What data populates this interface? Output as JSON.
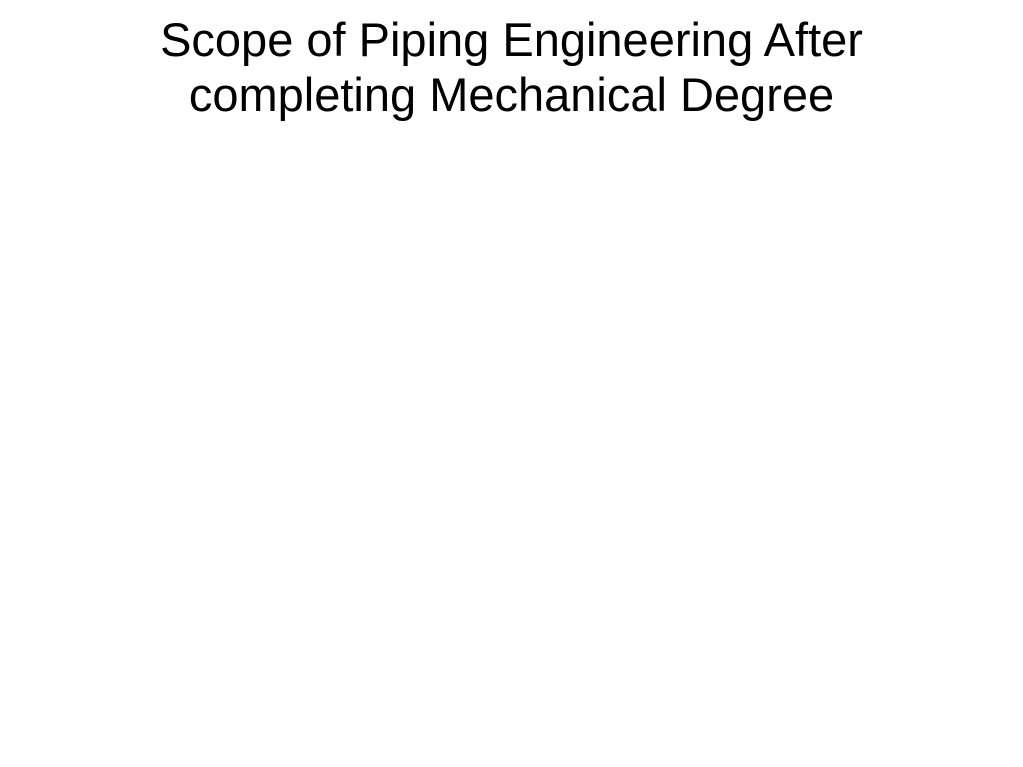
{
  "slide": {
    "title": "Scope of Piping Engineering After completing  Mechanical Degree",
    "background_color": "#ffffff",
    "title_color": "#000000",
    "title_fontsize": 47,
    "title_font_family": "Arial",
    "title_font_weight": 400,
    "title_align": "center",
    "title_line_height": 1.18
  }
}
